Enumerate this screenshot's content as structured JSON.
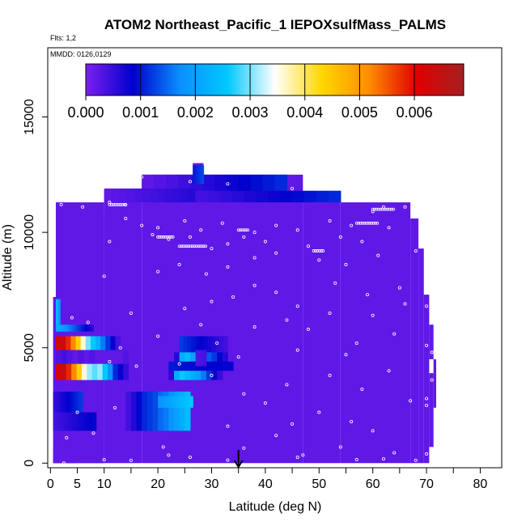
{
  "chart_data": {
    "type": "heatmap",
    "title": "ATOM2 Northeast_Pacific_1 IEPOXsulfMass_PALMS",
    "flights_label": "Flts: 1,2",
    "mmdd_label": "MMDD: 0126,0129",
    "xlabel": "Latitude (deg N)",
    "ylabel": "Altitude (m)",
    "xlim": [
      -0.5,
      84
    ],
    "ylim": [
      -200,
      18000
    ],
    "x_ticks": [
      0,
      5,
      10,
      20,
      30,
      40,
      50,
      60,
      70,
      80
    ],
    "x_minor_ticks": [
      15,
      25,
      35,
      45,
      55,
      65,
      75,
      85
    ],
    "y_ticks": [
      0,
      5000,
      10000,
      15000
    ],
    "colorbar": {
      "min": 0.0,
      "max": 0.0069,
      "tick_values": [
        0.0,
        0.001,
        0.002,
        0.003,
        0.004,
        0.005,
        0.006
      ],
      "tick_labels": [
        "0.000",
        "0.001",
        "0.002",
        "0.003",
        "0.004",
        "0.005",
        "0.006"
      ],
      "stops": [
        "#7d1fef",
        "#0000cd",
        "#0a8fff",
        "#00c8ff",
        "#ffffff",
        "#ffd700",
        "#ff8c00",
        "#e00000",
        "#a52020"
      ]
    },
    "background_value": 0.0002,
    "envelope": [
      {
        "lat0": 0.5,
        "lat1": 1.5,
        "alt0": 0,
        "alt1": 600
      },
      {
        "lat0": 0.5,
        "lat1": 5,
        "alt0": 0,
        "alt1": 7200
      },
      {
        "lat0": 1,
        "lat1": 10,
        "alt0": 0,
        "alt1": 11300
      },
      {
        "lat0": 1.5,
        "lat1": 5,
        "alt0": 0,
        "alt1": 11200
      },
      {
        "lat0": 5,
        "lat1": 10,
        "alt0": 0,
        "alt1": 10900
      },
      {
        "lat0": 10,
        "lat1": 17,
        "alt0": 0,
        "alt1": 11800
      },
      {
        "lat0": 17,
        "lat1": 47,
        "alt0": 0,
        "alt1": 12500
      },
      {
        "lat0": 47,
        "lat1": 54,
        "alt0": 0,
        "alt1": 11800
      },
      {
        "lat0": 54,
        "lat1": 67,
        "alt0": 0,
        "alt1": 11300
      },
      {
        "lat0": 67,
        "lat1": 68.5,
        "alt0": 0,
        "alt1": 10600
      },
      {
        "lat0": 68.5,
        "lat1": 69.5,
        "alt0": 0,
        "alt1": 9300
      },
      {
        "lat0": 69.5,
        "lat1": 70.5,
        "alt0": 0,
        "alt1": 7300
      },
      {
        "lat0": 70.5,
        "lat1": 71.3,
        "alt0": 700,
        "alt1": 3900
      },
      {
        "lat0": 70.5,
        "lat1": 71.3,
        "alt0": 4500,
        "alt1": 6000
      },
      {
        "lat0": 71.3,
        "lat1": 71.8,
        "alt0": 2400,
        "alt1": 4500
      },
      {
        "lat0": 26.5,
        "lat1": 28.5,
        "alt0": 12000,
        "alt1": 13000
      }
    ],
    "patches": [
      {
        "lat0": 17,
        "lat1": 44,
        "alt0": 11700,
        "alt1": 12500,
        "v0": 0.0002,
        "v1": 0.0011
      },
      {
        "lat0": 10,
        "lat1": 27,
        "alt0": 11300,
        "alt1": 11900,
        "v0": 0.0002,
        "v1": 0.0006
      },
      {
        "lat0": 27,
        "lat1": 54,
        "alt0": 11300,
        "alt1": 11800,
        "v0": 0.0004,
        "v1": 0.0011
      },
      {
        "lat0": 26.5,
        "lat1": 28.5,
        "alt0": 12100,
        "alt1": 12900,
        "v0": 0.001,
        "v1": 0.0013
      },
      {
        "lat0": 1,
        "lat1": 1.8,
        "alt0": 6000,
        "alt1": 7100,
        "v0": 0.0025,
        "v1": 0.0018
      },
      {
        "lat0": 1,
        "lat1": 8,
        "alt0": 5700,
        "alt1": 6000,
        "v0": 0.0022,
        "v1": 0.0006
      },
      {
        "lat0": 1,
        "lat1": 13,
        "alt0": 4900,
        "alt1": 5500,
        "vals": [
          0.0062,
          0.0064,
          0.0058,
          0.0052,
          0.0044,
          0.0036,
          0.003,
          0.0026,
          0.0022,
          0.0016,
          0.0012,
          0.0008,
          0.0004
        ]
      },
      {
        "lat0": 1,
        "lat1": 14.5,
        "alt0": 4300,
        "alt1": 4900,
        "vals": [
          0.0003,
          0.0004,
          0.0003,
          0.0002,
          0.0003,
          0.0002,
          0.0003,
          0.0002,
          0.0002,
          0.0002,
          0.0002,
          0.0002,
          0.0003
        ]
      },
      {
        "lat0": 1,
        "lat1": 14.5,
        "alt0": 3600,
        "alt1": 4300,
        "vals": [
          0.0062,
          0.0064,
          0.0058,
          0.0052,
          0.0044,
          0.0036,
          0.0031,
          0.0029,
          0.0031,
          0.0026,
          0.0018,
          0.0011,
          0.0008,
          0.0005
        ]
      },
      {
        "lat0": 0.5,
        "lat1": 6,
        "alt0": 2200,
        "alt1": 3100,
        "v0": 0.0005,
        "v1": 0.0012
      },
      {
        "lat0": 0.5,
        "lat1": 8.5,
        "alt0": 1400,
        "alt1": 2200,
        "v0": 0.0004,
        "v1": 0.0009
      },
      {
        "lat0": 14,
        "lat1": 26,
        "alt0": 1400,
        "alt1": 3100,
        "vals": [
          0.0004,
          0.0006,
          0.0009,
          0.0011,
          0.0012,
          0.0013,
          0.0015,
          0.0016,
          0.0018,
          0.002,
          0.0022,
          0.0024
        ]
      },
      {
        "lat0": 20,
        "lat1": 26.5,
        "alt0": 2400,
        "alt1": 2900,
        "v0": 0.0018,
        "v1": 0.0026
      },
      {
        "lat0": 24,
        "lat1": 33,
        "alt0": 4800,
        "alt1": 5500,
        "v0": 0.0012,
        "v1": 0.0004
      },
      {
        "lat0": 23,
        "lat1": 33,
        "alt0": 4400,
        "alt1": 4800,
        "vals": [
          0.0006,
          0.0022,
          0.0024,
          0.002,
          0.0018,
          0.0016,
          0.0014,
          0.0012,
          0.0009,
          0.0006
        ]
      },
      {
        "lat0": 22,
        "lat1": 34,
        "alt0": 4000,
        "alt1": 4400,
        "v0": 0.001,
        "v1": 0.0008
      },
      {
        "lat0": 22,
        "lat1": 32,
        "alt0": 3600,
        "alt1": 4000,
        "vals": [
          0.0006,
          0.0022,
          0.0026,
          0.0024,
          0.0022,
          0.002,
          0.0016,
          0.0012,
          0.0008,
          0.0005
        ]
      },
      {
        "lat0": 27,
        "lat1": 29,
        "alt0": 4200,
        "alt1": 4900,
        "v0": 0.0003,
        "v1": 0.0004
      }
    ],
    "sample_points": [
      [
        2.5,
        0
      ],
      [
        10,
        150
      ],
      [
        15,
        120
      ],
      [
        22,
        350
      ],
      [
        26,
        250
      ],
      [
        33,
        130
      ],
      [
        46,
        250
      ],
      [
        57,
        150
      ],
      [
        62,
        180
      ],
      [
        68,
        120
      ],
      [
        3,
        1100
      ],
      [
        8,
        1300
      ],
      [
        21,
        700
      ],
      [
        36,
        650
      ],
      [
        42,
        1200
      ],
      [
        47,
        350
      ],
      [
        54,
        700
      ],
      [
        64,
        450
      ],
      [
        70,
        400
      ],
      [
        5,
        2200
      ],
      [
        12,
        2400
      ],
      [
        33,
        1600
      ],
      [
        40,
        2600
      ],
      [
        45,
        1700
      ],
      [
        50,
        2200
      ],
      [
        56,
        1800
      ],
      [
        60,
        1400
      ],
      [
        67,
        2700
      ],
      [
        70,
        2500
      ],
      [
        36,
        3000
      ],
      [
        44,
        3400
      ],
      [
        52,
        3800
      ],
      [
        58,
        3200
      ],
      [
        63,
        4000
      ],
      [
        70,
        2800
      ],
      [
        71,
        3600
      ],
      [
        11,
        4400
      ],
      [
        16,
        4200
      ],
      [
        24,
        4300
      ],
      [
        30,
        3800
      ],
      [
        31,
        5200
      ],
      [
        35,
        4600
      ],
      [
        46,
        4900
      ],
      [
        48,
        5800
      ],
      [
        55,
        4700
      ],
      [
        57,
        5200
      ],
      [
        64,
        5600
      ],
      [
        70,
        5100
      ],
      [
        13,
        5000
      ],
      [
        20,
        5500
      ],
      [
        28,
        6000
      ],
      [
        38,
        5900
      ],
      [
        44,
        6200
      ],
      [
        52,
        6500
      ],
      [
        60,
        6400
      ],
      [
        66,
        6900
      ],
      [
        70,
        6800
      ],
      [
        71,
        4800
      ],
      [
        4,
        6300
      ],
      [
        7,
        6100
      ],
      [
        15,
        6500
      ],
      [
        25,
        6700
      ],
      [
        30,
        7000
      ],
      [
        34,
        7200
      ],
      [
        38,
        7700
      ],
      [
        42,
        7400
      ],
      [
        46,
        6800
      ],
      [
        53,
        7800
      ],
      [
        59,
        7300
      ],
      [
        65,
        7600
      ],
      [
        70,
        7900
      ],
      [
        10,
        8100
      ],
      [
        20,
        8300
      ],
      [
        24,
        8600
      ],
      [
        29,
        8200
      ],
      [
        33,
        8500
      ],
      [
        38,
        8900
      ],
      [
        42,
        9100
      ],
      [
        50,
        8800
      ],
      [
        55,
        8600
      ],
      [
        61,
        9000
      ],
      [
        68,
        9200
      ],
      [
        11,
        9600
      ],
      [
        19,
        9900
      ],
      [
        22,
        9700
      ],
      [
        26,
        9800
      ],
      [
        30,
        9300
      ],
      [
        33,
        9500
      ],
      [
        36,
        9800
      ],
      [
        40,
        9600
      ],
      [
        48,
        9400
      ],
      [
        54,
        9800
      ],
      [
        58,
        9600
      ],
      [
        63,
        10200
      ],
      [
        14,
        10600
      ],
      [
        17,
        10300
      ],
      [
        20,
        10200
      ],
      [
        25,
        10500
      ],
      [
        28,
        10100
      ],
      [
        32,
        10400
      ],
      [
        38,
        10000
      ],
      [
        42,
        10300
      ],
      [
        46,
        10100
      ],
      [
        52,
        10500
      ],
      [
        56,
        10300
      ],
      [
        60,
        10900
      ],
      [
        2,
        11200
      ],
      [
        6,
        11100
      ],
      [
        11,
        11300
      ],
      [
        14,
        11200
      ],
      [
        17,
        12400
      ],
      [
        26,
        12200
      ],
      [
        33,
        12100
      ],
      [
        45,
        11900
      ],
      [
        62,
        11100
      ],
      [
        66,
        11100
      ]
    ],
    "flight_tracks": [
      {
        "lat0": 24,
        "lat1": 29,
        "alt": 9400
      },
      {
        "lat0": 35,
        "lat1": 37,
        "alt": 10100
      },
      {
        "lat0": 49,
        "lat1": 51,
        "alt": 9200
      },
      {
        "lat0": 57,
        "lat1": 61,
        "alt": 10400
      },
      {
        "lat0": 60,
        "lat1": 64,
        "alt": 11000
      },
      {
        "lat0": 11,
        "lat1": 14,
        "alt": 11200
      },
      {
        "lat0": 20,
        "lat1": 23,
        "alt": 9800
      }
    ],
    "arrow_lat": 35
  }
}
